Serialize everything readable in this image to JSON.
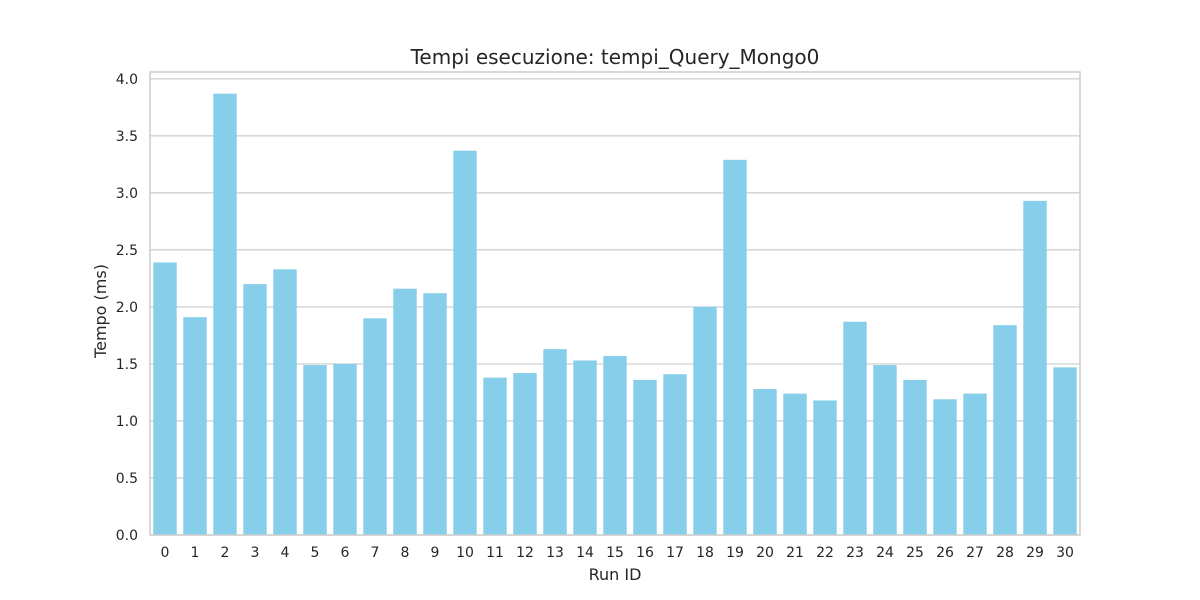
{
  "chart_data": {
    "type": "bar",
    "title": "Tempi esecuzione: tempi_Query_Mongo0",
    "xlabel": "Run ID",
    "ylabel": "Tempo (ms)",
    "categories": [
      "0",
      "1",
      "2",
      "3",
      "4",
      "5",
      "6",
      "7",
      "8",
      "9",
      "10",
      "11",
      "12",
      "13",
      "14",
      "15",
      "16",
      "17",
      "18",
      "19",
      "20",
      "21",
      "22",
      "23",
      "24",
      "25",
      "26",
      "27",
      "28",
      "29",
      "30"
    ],
    "values": [
      2.39,
      1.91,
      3.87,
      2.2,
      2.33,
      1.49,
      1.5,
      1.9,
      2.16,
      2.12,
      3.37,
      1.38,
      1.42,
      1.63,
      1.53,
      1.57,
      1.36,
      1.41,
      2.0,
      3.29,
      1.28,
      1.24,
      1.18,
      1.87,
      1.49,
      1.36,
      1.19,
      1.24,
      1.84,
      2.93,
      1.47
    ],
    "ylim": [
      0,
      4.06
    ],
    "yticks": [
      "0.0",
      "0.5",
      "1.0",
      "1.5",
      "2.0",
      "2.5",
      "3.0",
      "3.5",
      "4.0"
    ],
    "grid": true,
    "bar_color": "#87ceeb",
    "grid_color": "#cccccc",
    "frame_color": "#cccccc"
  }
}
